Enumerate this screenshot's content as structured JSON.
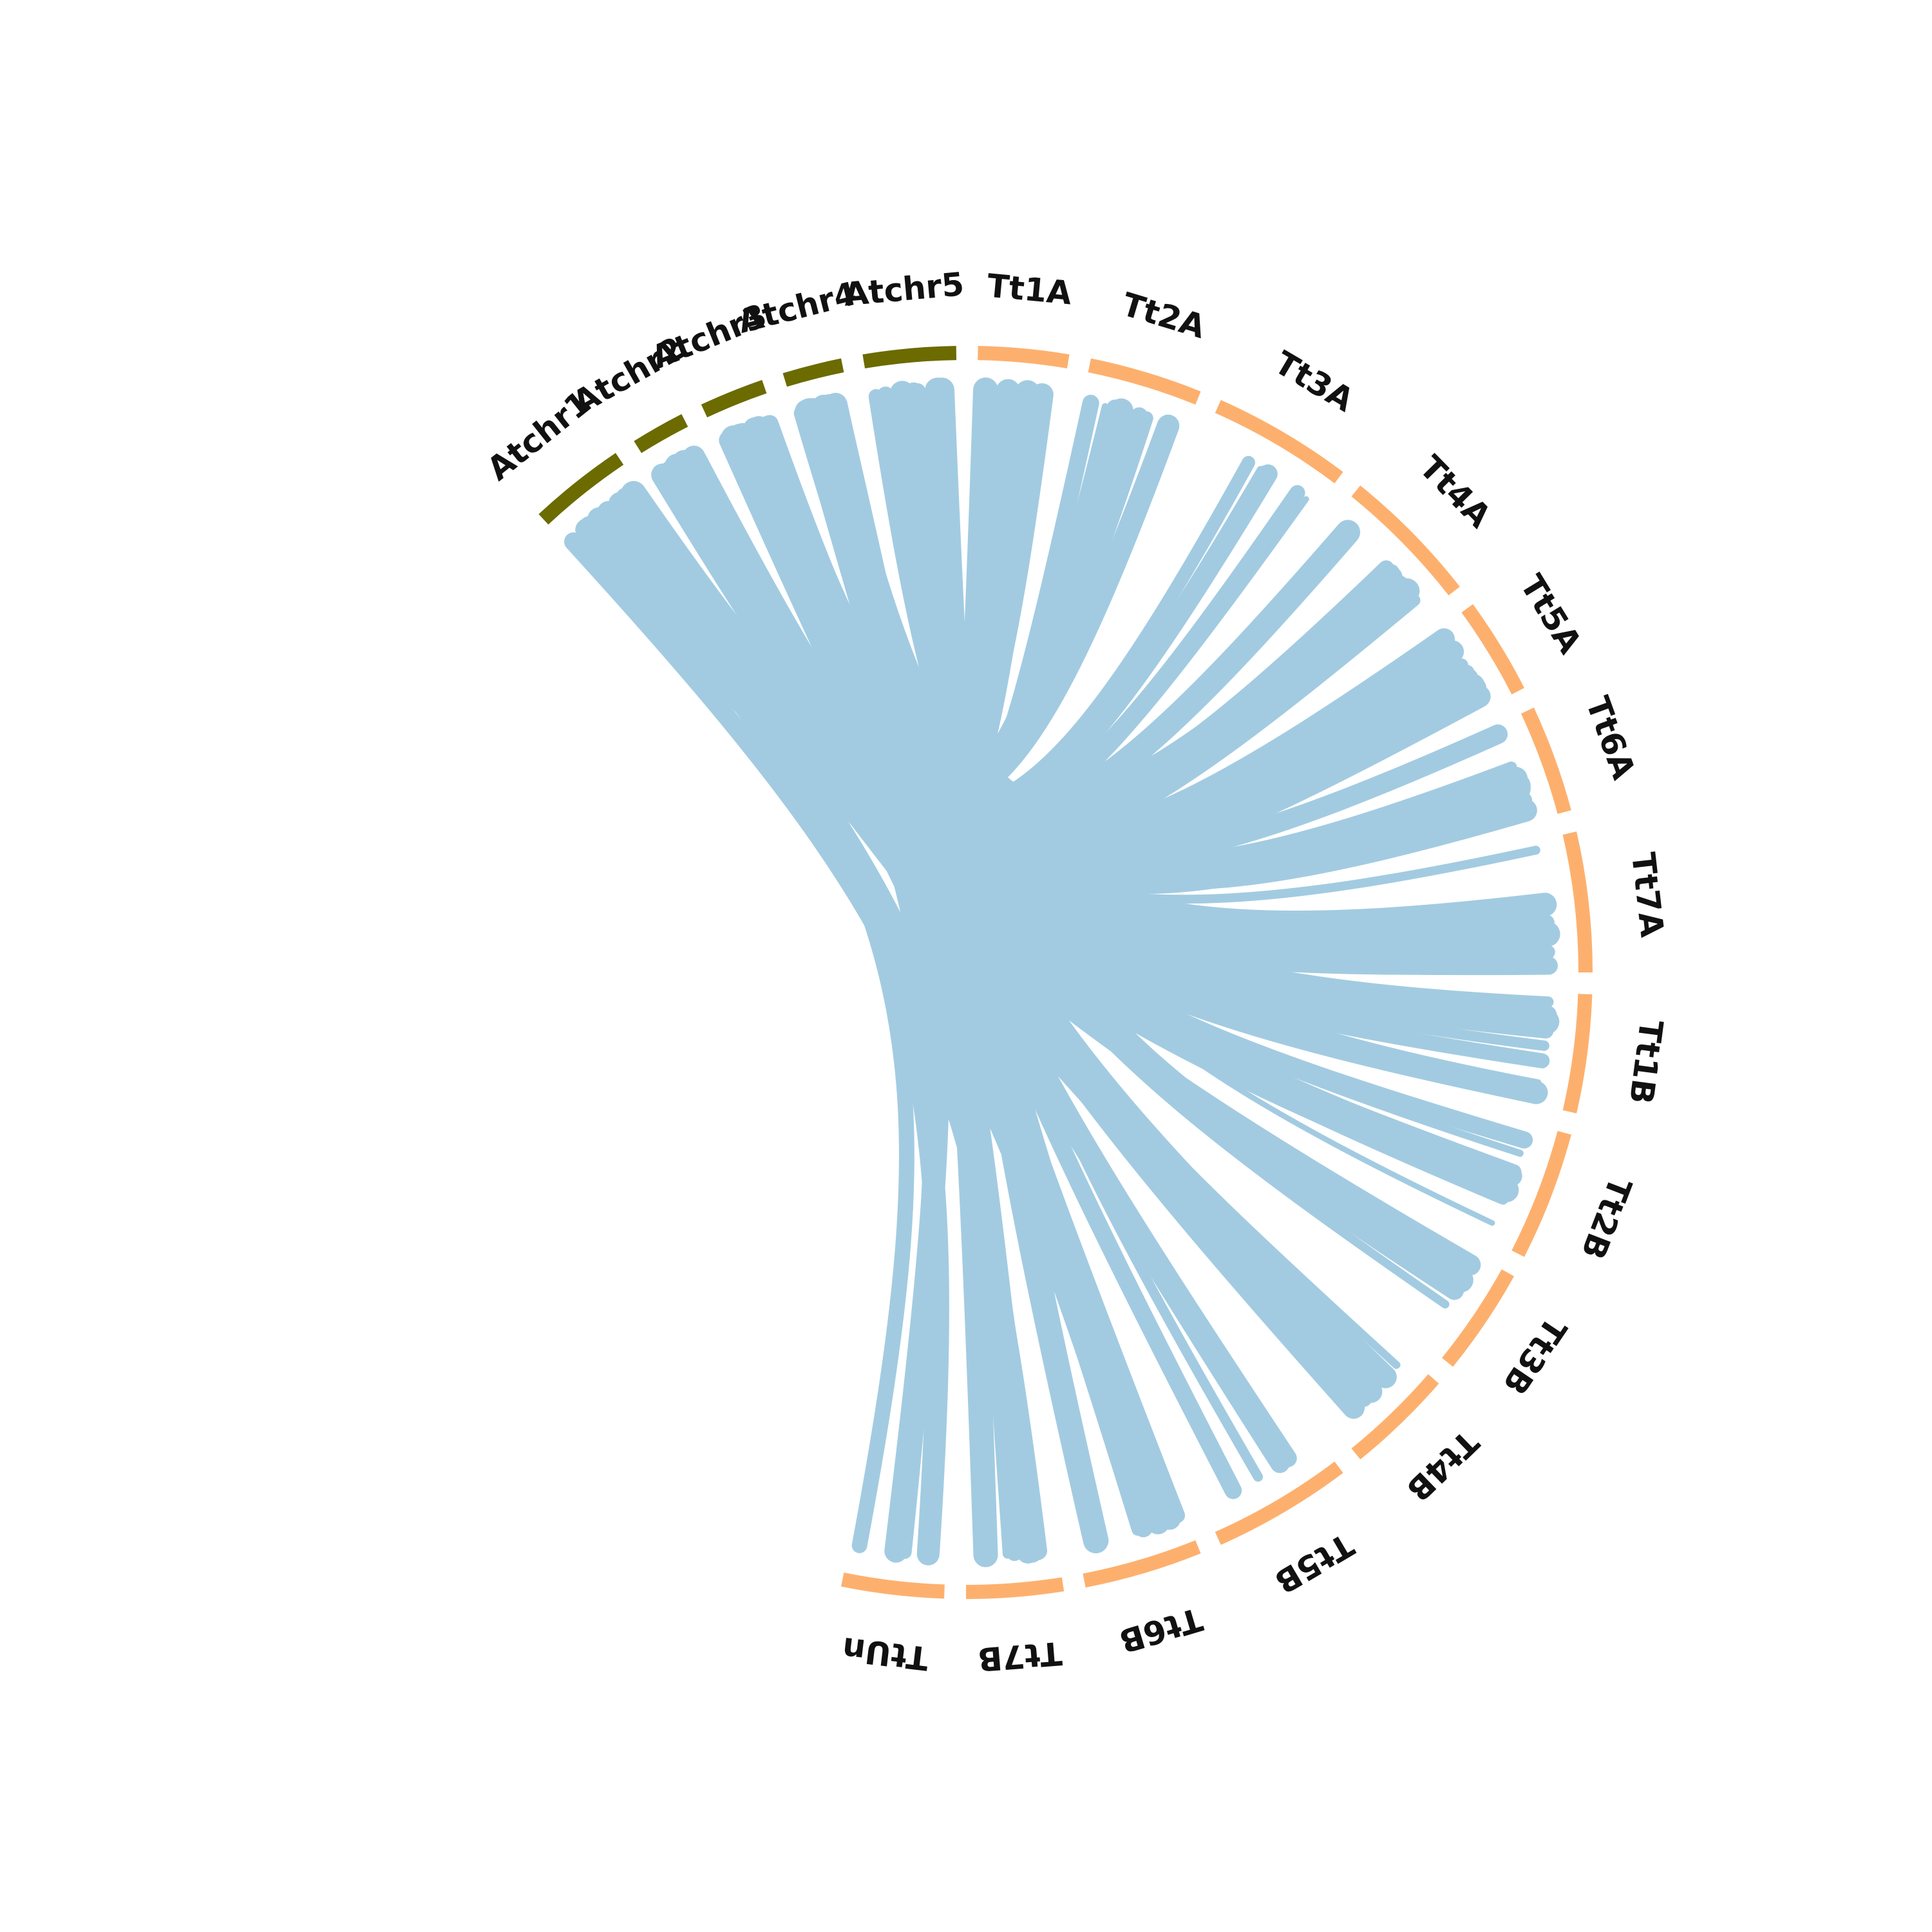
{
  "colors": {
    "background": "#ffffff",
    "arabidopsis_segment": "#6b6b00",
    "wheat_segment": "#fdb06e",
    "link": "#a2cbe1",
    "label": "#111111"
  },
  "chromosomes": [
    {
      "label": "Atchr1",
      "group": "arabidopsis"
    },
    {
      "label": "Atchr2",
      "group": "arabidopsis"
    },
    {
      "label": "Atchr3",
      "group": "arabidopsis"
    },
    {
      "label": "Atchr4",
      "group": "arabidopsis"
    },
    {
      "label": "Atchr5",
      "group": "arabidopsis"
    },
    {
      "label": "Tt1A",
      "group": "wheat"
    },
    {
      "label": "Tt2A",
      "group": "wheat"
    },
    {
      "label": "Tt3A",
      "group": "wheat"
    },
    {
      "label": "Tt4A",
      "group": "wheat"
    },
    {
      "label": "Tt5A",
      "group": "wheat"
    },
    {
      "label": "Tt6A",
      "group": "wheat"
    },
    {
      "label": "Tt7A",
      "group": "wheat"
    },
    {
      "label": "Tt1B",
      "group": "wheat"
    },
    {
      "label": "Tt2B",
      "group": "wheat"
    },
    {
      "label": "Tt3B",
      "group": "wheat"
    },
    {
      "label": "Tt4B",
      "group": "wheat"
    },
    {
      "label": "Tt5B",
      "group": "wheat"
    },
    {
      "label": "Tt6B",
      "group": "wheat"
    },
    {
      "label": "Tt7B",
      "group": "wheat"
    },
    {
      "label": "TtUn",
      "group": "wheat"
    }
  ]
}
